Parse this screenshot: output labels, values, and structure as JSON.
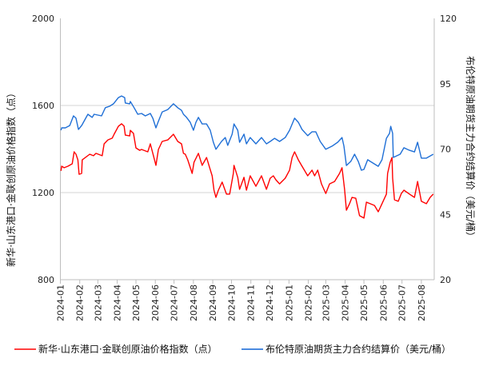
{
  "chart_data": {
    "type": "line",
    "title": "",
    "xlabel": "",
    "ylabel": "新华·山东港口·金联创原油价格指数（点）",
    "y2label": "布伦特原油期货主力合约结算价（美元/桶）",
    "ylim": [
      800,
      2000
    ],
    "y2lim": [
      20,
      120
    ],
    "yticks": [
      800,
      1200,
      1600,
      2000
    ],
    "y2ticks": [
      20,
      45,
      70,
      95,
      120
    ],
    "xlim": [
      "2024-01-01",
      "2025-08-20"
    ],
    "xticks": [
      "2024-01",
      "2024-02",
      "2024-03",
      "2024-04",
      "2024-05",
      "2024-06",
      "2024-07",
      "2024-08",
      "2024-09",
      "2024-10",
      "2024-11",
      "2024-12",
      "2025-01",
      "2025-02",
      "2025-03",
      "2025-04",
      "2025-05",
      "2025-06",
      "2025-07",
      "2025-08"
    ],
    "grid": "horizontal",
    "legend_position": "bottom",
    "series": [
      {
        "name": "新华·山东港口·金联创原油价格指数（点）",
        "axis": "left",
        "color": "#ff0000",
        "points": [
          [
            "2024-01-02",
            1300
          ],
          [
            "2024-01-03",
            1321
          ],
          [
            "2024-01-07",
            1314
          ],
          [
            "2024-01-13",
            1321
          ],
          [
            "2024-01-20",
            1332
          ],
          [
            "2024-01-23",
            1387
          ],
          [
            "2024-01-26",
            1376
          ],
          [
            "2024-01-29",
            1350
          ],
          [
            "2024-01-31",
            1284
          ],
          [
            "2024-02-04",
            1288
          ],
          [
            "2024-02-05",
            1350
          ],
          [
            "2024-02-17",
            1376
          ],
          [
            "2024-02-23",
            1369
          ],
          [
            "2024-02-27",
            1380
          ],
          [
            "2024-03-08",
            1369
          ],
          [
            "2024-03-11",
            1424
          ],
          [
            "2024-03-17",
            1442
          ],
          [
            "2024-03-24",
            1450
          ],
          [
            "2024-03-27",
            1468
          ],
          [
            "2024-04-03",
            1505
          ],
          [
            "2024-04-08",
            1516
          ],
          [
            "2024-04-12",
            1505
          ],
          [
            "2024-04-14",
            1464
          ],
          [
            "2024-04-21",
            1460
          ],
          [
            "2024-04-22",
            1486
          ],
          [
            "2024-04-27",
            1472
          ],
          [
            "2024-05-01",
            1405
          ],
          [
            "2024-05-07",
            1394
          ],
          [
            "2024-05-10",
            1398
          ],
          [
            "2024-05-20",
            1387
          ],
          [
            "2024-05-24",
            1424
          ],
          [
            "2024-05-29",
            1369
          ],
          [
            "2024-06-02",
            1325
          ],
          [
            "2024-06-06",
            1398
          ],
          [
            "2024-06-12",
            1435
          ],
          [
            "2024-06-21",
            1442
          ],
          [
            "2024-06-30",
            1468
          ],
          [
            "2024-07-07",
            1435
          ],
          [
            "2024-07-13",
            1424
          ],
          [
            "2024-07-16",
            1380
          ],
          [
            "2024-07-19",
            1376
          ],
          [
            "2024-07-23",
            1350
          ],
          [
            "2024-07-30",
            1288
          ],
          [
            "2024-08-02",
            1339
          ],
          [
            "2024-08-09",
            1380
          ],
          [
            "2024-08-15",
            1325
          ],
          [
            "2024-08-22",
            1361
          ],
          [
            "2024-08-27",
            1314
          ],
          [
            "2024-08-31",
            1277
          ],
          [
            "2024-09-03",
            1211
          ],
          [
            "2024-09-06",
            1178
          ],
          [
            "2024-09-10",
            1211
          ],
          [
            "2024-09-16",
            1248
          ],
          [
            "2024-09-23",
            1193
          ],
          [
            "2024-09-28",
            1193
          ],
          [
            "2024-10-04",
            1288
          ],
          [
            "2024-10-05",
            1325
          ],
          [
            "2024-10-11",
            1270
          ],
          [
            "2024-10-14",
            1215
          ],
          [
            "2024-10-21",
            1270
          ],
          [
            "2024-10-25",
            1211
          ],
          [
            "2024-10-31",
            1277
          ],
          [
            "2024-11-09",
            1229
          ],
          [
            "2024-11-18",
            1277
          ],
          [
            "2024-11-26",
            1215
          ],
          [
            "2024-12-02",
            1266
          ],
          [
            "2024-12-07",
            1277
          ],
          [
            "2024-12-11",
            1259
          ],
          [
            "2024-12-17",
            1240
          ],
          [
            "2024-12-26",
            1266
          ],
          [
            "2025-01-02",
            1303
          ],
          [
            "2025-01-06",
            1361
          ],
          [
            "2025-01-10",
            1387
          ],
          [
            "2025-01-16",
            1350
          ],
          [
            "2025-01-22",
            1321
          ],
          [
            "2025-01-31",
            1277
          ],
          [
            "2025-02-07",
            1303
          ],
          [
            "2025-02-11",
            1277
          ],
          [
            "2025-02-16",
            1303
          ],
          [
            "2025-02-22",
            1240
          ],
          [
            "2025-03-01",
            1196
          ],
          [
            "2025-03-07",
            1240
          ],
          [
            "2025-03-15",
            1251
          ],
          [
            "2025-03-23",
            1288
          ],
          [
            "2025-03-27",
            1314
          ],
          [
            "2025-03-31",
            1215
          ],
          [
            "2025-04-03",
            1119
          ],
          [
            "2025-04-08",
            1149
          ],
          [
            "2025-04-12",
            1178
          ],
          [
            "2025-04-18",
            1174
          ],
          [
            "2025-04-24",
            1094
          ],
          [
            "2025-05-01",
            1083
          ],
          [
            "2025-05-05",
            1156
          ],
          [
            "2025-05-11",
            1149
          ],
          [
            "2025-05-18",
            1141
          ],
          [
            "2025-05-24",
            1112
          ],
          [
            "2025-05-30",
            1149
          ],
          [
            "2025-06-06",
            1193
          ],
          [
            "2025-06-08",
            1288
          ],
          [
            "2025-06-12",
            1339
          ],
          [
            "2025-06-15",
            1361
          ],
          [
            "2025-06-16",
            1266
          ],
          [
            "2025-06-19",
            1167
          ],
          [
            "2025-06-25",
            1160
          ],
          [
            "2025-06-30",
            1196
          ],
          [
            "2025-07-04",
            1211
          ],
          [
            "2025-07-13",
            1193
          ],
          [
            "2025-07-21",
            1178
          ],
          [
            "2025-07-26",
            1251
          ],
          [
            "2025-07-29",
            1204
          ],
          [
            "2025-08-01",
            1160
          ],
          [
            "2025-08-09",
            1149
          ],
          [
            "2025-08-15",
            1178
          ],
          [
            "2025-08-20",
            1193
          ]
        ]
      },
      {
        "name": "布伦特原油期货主力合约结算价（美元/桶）",
        "axis": "right",
        "color": "#1f6fd6",
        "points": [
          [
            "2024-01-02",
            77.2
          ],
          [
            "2024-01-03",
            78.1
          ],
          [
            "2024-01-09",
            78.1
          ],
          [
            "2024-01-16",
            79.0
          ],
          [
            "2024-01-22",
            82.7
          ],
          [
            "2024-01-26",
            81.8
          ],
          [
            "2024-01-30",
            77.5
          ],
          [
            "2024-02-04",
            79.0
          ],
          [
            "2024-02-14",
            83.3
          ],
          [
            "2024-02-21",
            82.1
          ],
          [
            "2024-02-24",
            83.3
          ],
          [
            "2024-03-07",
            82.7
          ],
          [
            "2024-03-13",
            85.8
          ],
          [
            "2024-03-20",
            86.4
          ],
          [
            "2024-03-26",
            87.3
          ],
          [
            "2024-04-03",
            89.7
          ],
          [
            "2024-04-08",
            90.3
          ],
          [
            "2024-04-13",
            89.7
          ],
          [
            "2024-04-14",
            87.6
          ],
          [
            "2024-04-21",
            87.3
          ],
          [
            "2024-04-22",
            88.2
          ],
          [
            "2024-04-28",
            85.8
          ],
          [
            "2024-05-04",
            83.3
          ],
          [
            "2024-05-10",
            83.6
          ],
          [
            "2024-05-16",
            82.7
          ],
          [
            "2024-05-24",
            83.6
          ],
          [
            "2024-05-28",
            81.8
          ],
          [
            "2024-06-02",
            78.1
          ],
          [
            "2024-06-06",
            80.6
          ],
          [
            "2024-06-12",
            84.2
          ],
          [
            "2024-06-21",
            85.1
          ],
          [
            "2024-06-30",
            87.3
          ],
          [
            "2024-07-07",
            85.8
          ],
          [
            "2024-07-13",
            84.8
          ],
          [
            "2024-07-16",
            83.3
          ],
          [
            "2024-07-21",
            82.1
          ],
          [
            "2024-07-27",
            80.2
          ],
          [
            "2024-08-01",
            77.2
          ],
          [
            "2024-08-05",
            80.2
          ],
          [
            "2024-08-09",
            82.1
          ],
          [
            "2024-08-15",
            79.6
          ],
          [
            "2024-08-22",
            79.6
          ],
          [
            "2024-08-28",
            77.2
          ],
          [
            "2024-09-02",
            72.6
          ],
          [
            "2024-09-06",
            69.9
          ],
          [
            "2024-09-15",
            72.9
          ],
          [
            "2024-09-21",
            74.4
          ],
          [
            "2024-09-25",
            71.4
          ],
          [
            "2024-10-02",
            75.7
          ],
          [
            "2024-10-05",
            79.6
          ],
          [
            "2024-10-11",
            77.2
          ],
          [
            "2024-10-14",
            72.6
          ],
          [
            "2024-10-21",
            75.7
          ],
          [
            "2024-10-25",
            72.0
          ],
          [
            "2024-10-31",
            74.4
          ],
          [
            "2024-11-09",
            72.0
          ],
          [
            "2024-11-18",
            74.4
          ],
          [
            "2024-11-26",
            72.0
          ],
          [
            "2024-12-02",
            72.9
          ],
          [
            "2024-12-09",
            74.1
          ],
          [
            "2024-12-17",
            72.9
          ],
          [
            "2024-12-26",
            74.4
          ],
          [
            "2025-01-02",
            77.2
          ],
          [
            "2025-01-10",
            81.8
          ],
          [
            "2025-01-16",
            80.2
          ],
          [
            "2025-01-22",
            77.5
          ],
          [
            "2025-01-31",
            75.1
          ],
          [
            "2025-02-07",
            76.6
          ],
          [
            "2025-02-13",
            76.6
          ],
          [
            "2025-02-20",
            72.9
          ],
          [
            "2025-03-01",
            69.9
          ],
          [
            "2025-03-11",
            71.1
          ],
          [
            "2025-03-20",
            72.6
          ],
          [
            "2025-03-27",
            74.4
          ],
          [
            "2025-03-30",
            71.1
          ],
          [
            "2025-04-03",
            63.7
          ],
          [
            "2025-04-10",
            65.3
          ],
          [
            "2025-04-16",
            68.0
          ],
          [
            "2025-04-22",
            65.3
          ],
          [
            "2025-04-27",
            61.9
          ],
          [
            "2025-05-01",
            62.2
          ],
          [
            "2025-05-07",
            65.9
          ],
          [
            "2025-05-11",
            65.3
          ],
          [
            "2025-05-24",
            63.4
          ],
          [
            "2025-05-30",
            65.9
          ],
          [
            "2025-06-06",
            74.1
          ],
          [
            "2025-06-11",
            76.0
          ],
          [
            "2025-06-13",
            78.7
          ],
          [
            "2025-06-16",
            76.0
          ],
          [
            "2025-06-17",
            66.8
          ],
          [
            "2025-06-28",
            68.0
          ],
          [
            "2025-07-04",
            70.5
          ],
          [
            "2025-07-13",
            69.5
          ],
          [
            "2025-07-21",
            68.9
          ],
          [
            "2025-07-26",
            72.6
          ],
          [
            "2025-08-01",
            66.5
          ],
          [
            "2025-08-09",
            66.5
          ],
          [
            "2025-08-20",
            68.0
          ]
        ]
      }
    ]
  }
}
